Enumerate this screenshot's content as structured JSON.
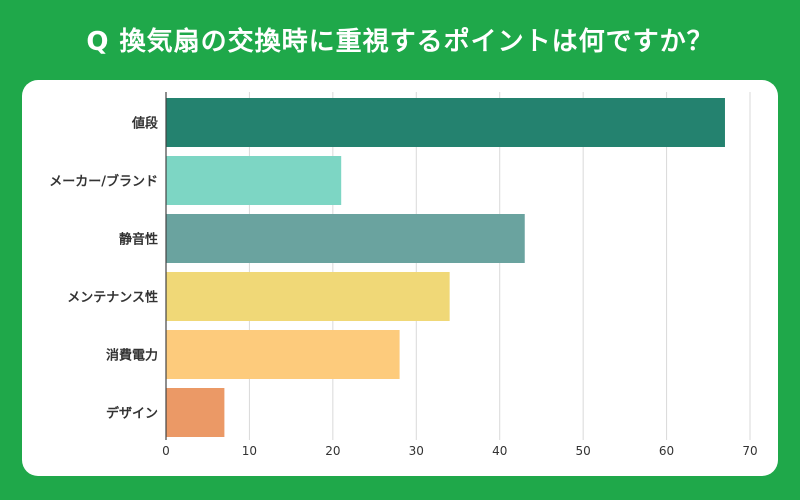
{
  "chart_data": {
    "type": "bar",
    "orientation": "horizontal",
    "title": "Q 換気扇の交換時に重視するポイントは何ですか？",
    "categories": [
      "値段",
      "メーカー/ブランド",
      "静音性",
      "メンテナンス性",
      "消費電力",
      "デザイン"
    ],
    "values": [
      67,
      21,
      43,
      34,
      28,
      7
    ],
    "colors": [
      "#24826f",
      "#7dd6c4",
      "#6aa39f",
      "#f0d877",
      "#fdcb7c",
      "#eb9966"
    ],
    "xlim": [
      0,
      70
    ],
    "xticks": [
      0,
      10,
      20,
      30,
      40,
      50,
      60,
      70
    ],
    "grid": true,
    "xlabel": "",
    "ylabel": ""
  },
  "theme": {
    "background": "#1fa84a",
    "card": "#ffffff"
  }
}
